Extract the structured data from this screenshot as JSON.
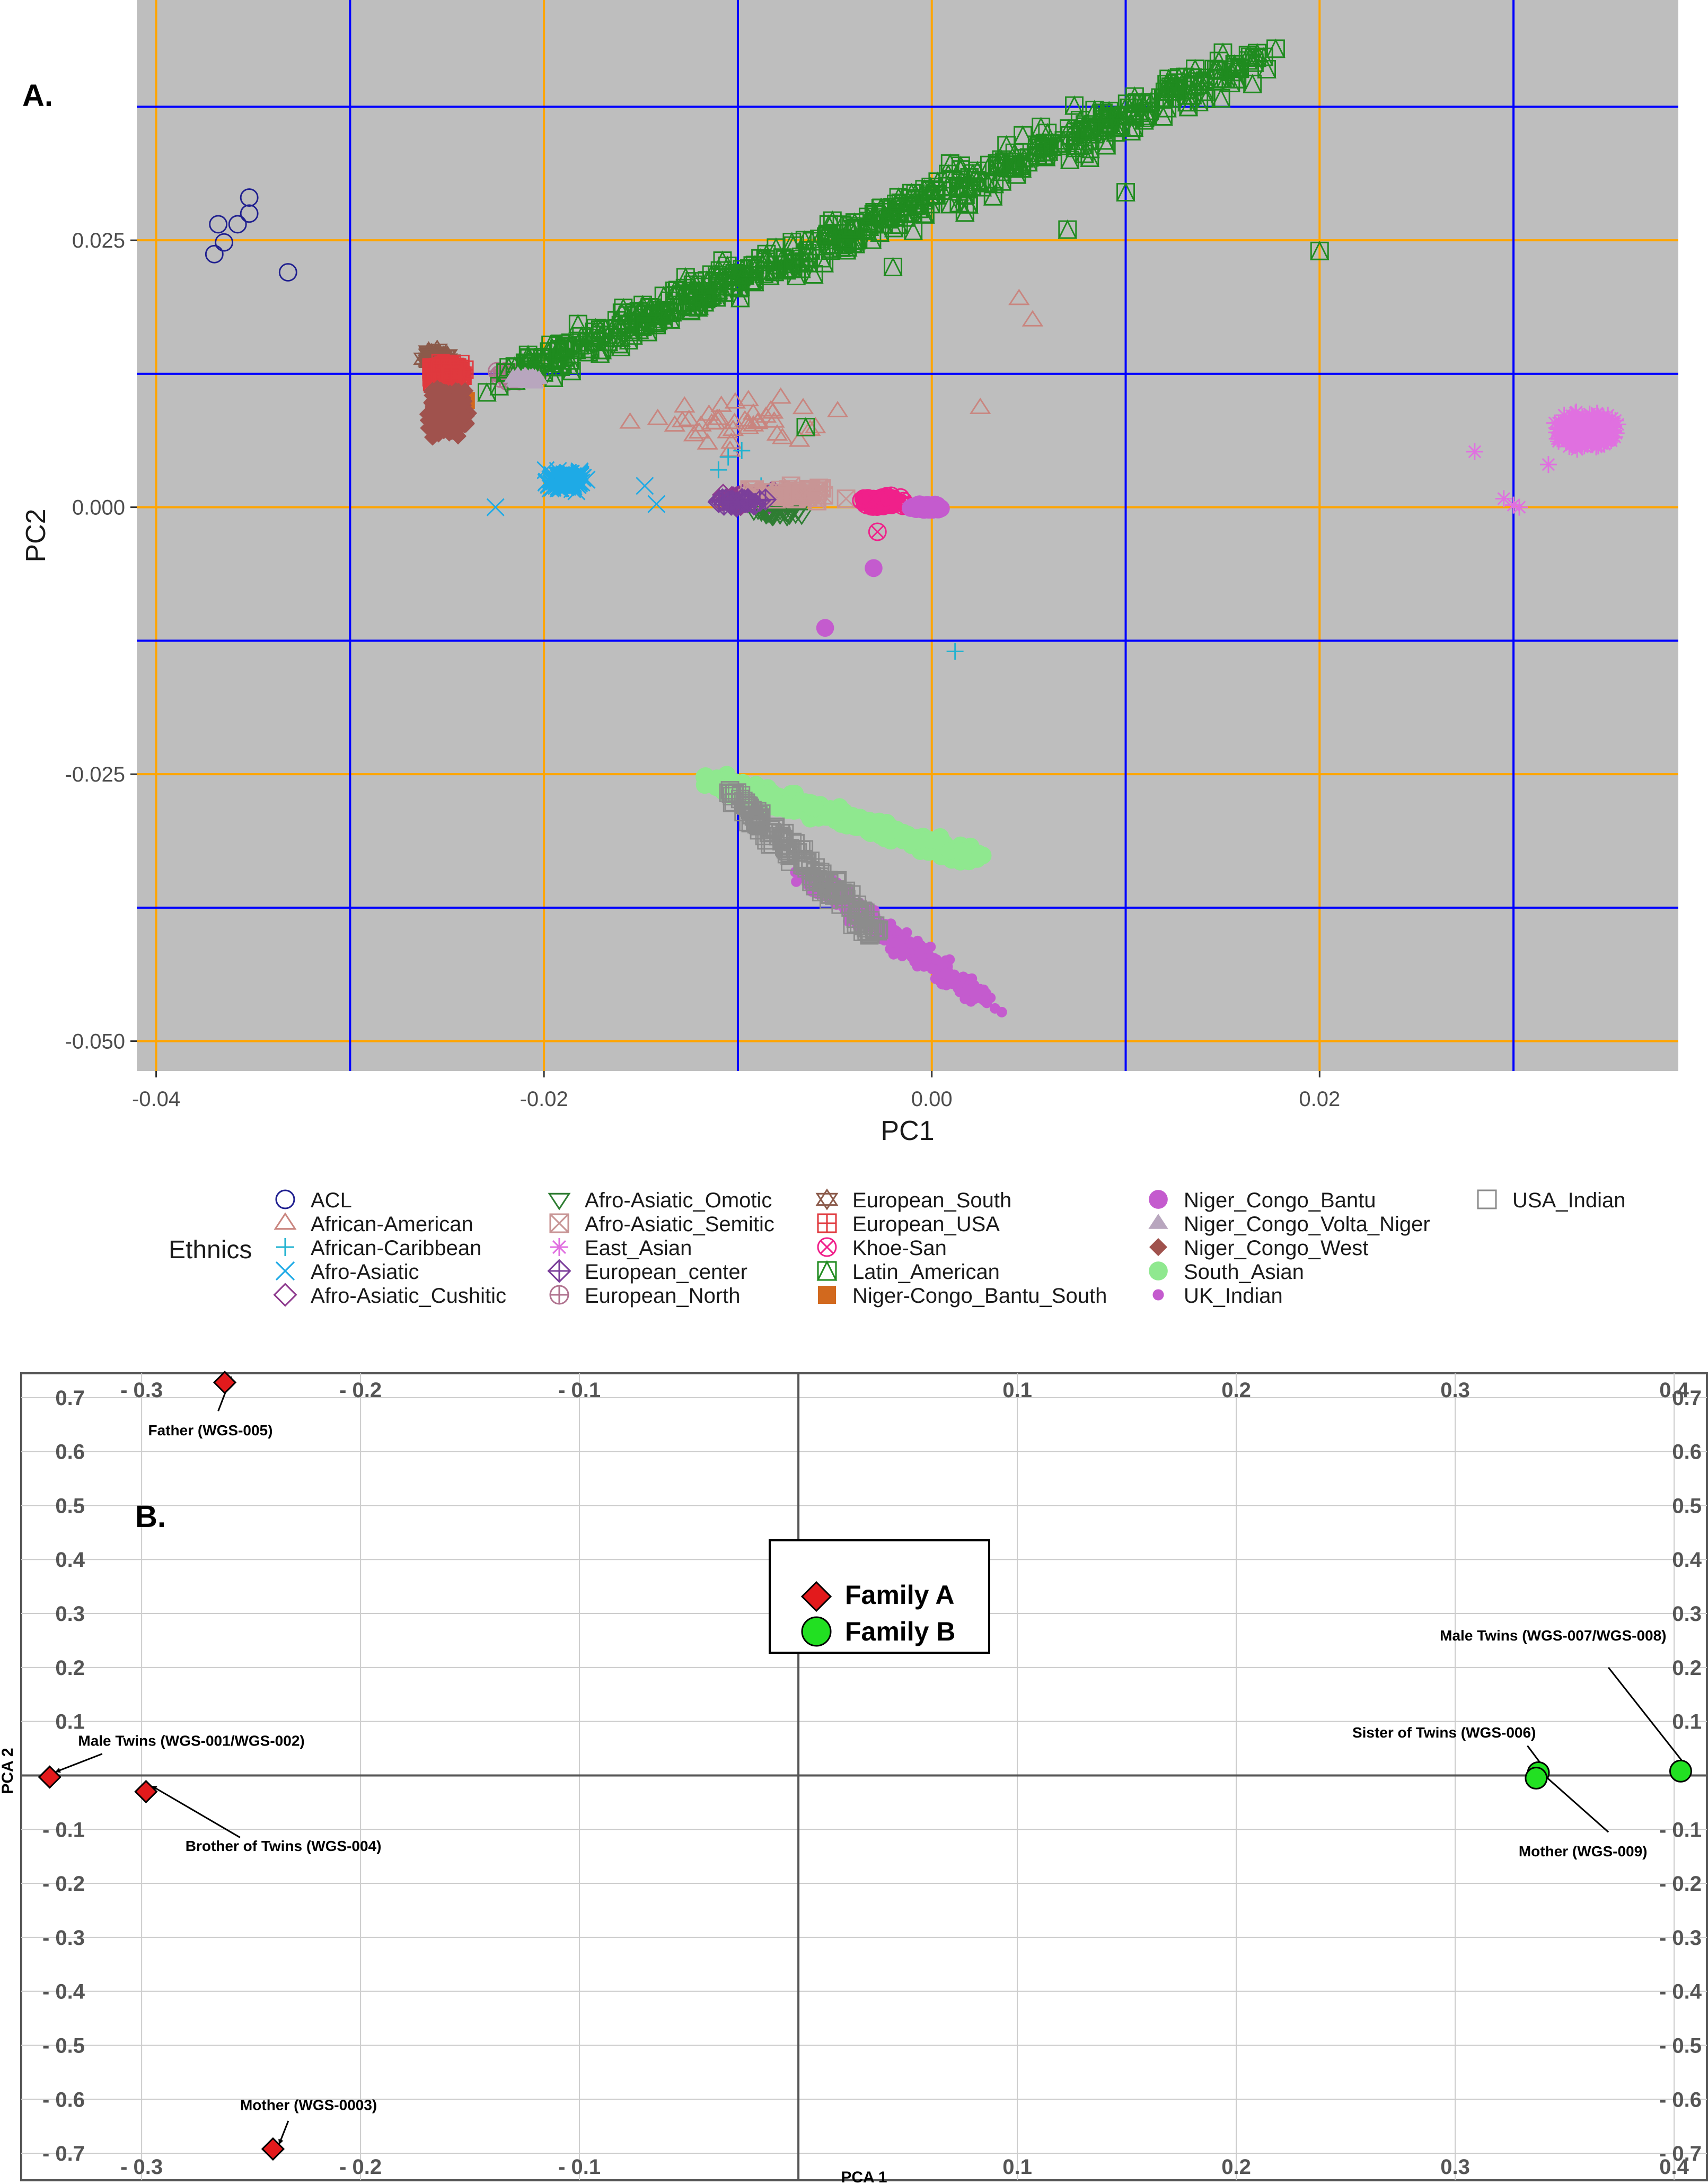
{
  "chart_data": [
    {
      "type": "scatter",
      "panel_label": "A.",
      "xlabel": "PC1",
      "ylabel": "PC2",
      "xlim": [
        -0.041,
        0.0385
      ],
      "ylim": [
        -0.0528,
        0.0475
      ],
      "x_ticks": [
        {
          "value": -0.04,
          "label": "-0.04"
        },
        {
          "value": -0.02,
          "label": "-0.02"
        },
        {
          "value": 0.0,
          "label": "0.00"
        },
        {
          "value": 0.02,
          "label": "0.02"
        }
      ],
      "y_ticks": [
        {
          "value": 0.025,
          "label": "0.025"
        },
        {
          "value": 0.0,
          "label": "0.000"
        },
        {
          "value": -0.025,
          "label": "-0.025"
        },
        {
          "value": -0.05,
          "label": "-0.050"
        }
      ],
      "minor_gridlines_x": [
        -0.03,
        -0.01,
        0.01,
        0.03
      ],
      "minor_gridlines_y": [
        0.0375,
        0.0125,
        -0.0125,
        -0.0375
      ],
      "grid_colors": {
        "major": "#FFA500",
        "minor": "#0000FF",
        "panel": "#BEBEBE"
      },
      "legend_title": "Ethnics",
      "legend_position": "bottom",
      "series": [
        {
          "name": "ACL",
          "color": "#1F1F8F",
          "shape": "circle-open",
          "n": 7,
          "x": [
            -0.037,
            -0.0368,
            -0.0358,
            -0.0352,
            -0.0352,
            -0.0332,
            -0.0365
          ],
          "y": [
            0.0237,
            0.0265,
            0.0265,
            0.0275,
            0.029,
            0.022,
            0.0248
          ]
        },
        {
          "name": "African-American",
          "color": "#C9857F",
          "shape": "triangle-open",
          "n": 40,
          "center": [
            -0.01,
            0.008
          ],
          "spread": [
            0.006,
            0.003
          ],
          "x": [
            0.0045,
            0.0052,
            0.0025,
            -0.012,
            -0.006
          ],
          "y": [
            0.0195,
            0.0175,
            0.0093,
            0.007,
            0.0075
          ]
        },
        {
          "name": "African-Caribbean",
          "color": "#20B2D0",
          "shape": "plus",
          "n": 12,
          "x": [
            -0.0105,
            -0.0098,
            0.0012,
            -0.0088,
            -0.011
          ],
          "y": [
            0.0047,
            0.0053,
            -0.0135,
            0.002,
            0.0035
          ]
        },
        {
          "name": "Afro-Asiatic",
          "color": "#1EAAE6",
          "shape": "cross",
          "n": 160,
          "center": [
            -0.0188,
            0.0025
          ],
          "spread": [
            0.0015,
            0.0012
          ],
          "x": [
            -0.0225,
            -0.0148,
            -0.0142
          ],
          "y": [
            0.0,
            0.002,
            0.0003
          ]
        },
        {
          "name": "Afro-Asiatic_Cushitic",
          "color": "#8E3A8E",
          "shape": "diamond-open",
          "n": 100,
          "center": [
            -0.009,
            0.0008
          ],
          "spread": [
            0.0025,
            0.0008
          ]
        },
        {
          "name": "Afro-Asiatic_Omotic",
          "color": "#2E7D32",
          "shape": "triangle-down-open",
          "n": 30,
          "center": [
            -0.008,
            -0.0005
          ],
          "spread": [
            0.0015,
            0.0006
          ]
        },
        {
          "name": "Afro-Asiatic_Semitic",
          "color": "#C89595",
          "shape": "square-cross",
          "n": 60,
          "center": [
            -0.007,
            0.0012
          ],
          "spread": [
            0.003,
            0.0009
          ]
        },
        {
          "name": "East_Asian",
          "color": "#E070E0",
          "shape": "asterisk",
          "n": 600,
          "center": [
            0.0338,
            0.0072
          ],
          "spread": [
            0.0018,
            0.0018
          ],
          "x": [
            0.028,
            0.03,
            0.0303,
            0.0295,
            0.0318
          ],
          "y": [
            0.0052,
            0.0002,
            0.0,
            0.0008,
            0.004
          ]
        },
        {
          "name": "European_center",
          "color": "#7B3F9A",
          "shape": "diamond-plus",
          "n": 30,
          "center": [
            -0.01,
            0.0005
          ],
          "spread": [
            0.0015,
            0.0005
          ]
        },
        {
          "name": "European_North",
          "color": "#B0738F",
          "shape": "circle-plus",
          "n": 30,
          "center": [
            -0.0215,
            0.0123
          ],
          "spread": [
            0.0015,
            0.0008
          ]
        },
        {
          "name": "European_South",
          "color": "#8B5A4A",
          "shape": "star-open",
          "n": 60,
          "center": [
            -0.0255,
            0.014
          ],
          "spread": [
            0.0008,
            0.0008
          ]
        },
        {
          "name": "European_USA",
          "color": "#E0393E",
          "shape": "square-plus",
          "n": 220,
          "center": [
            -0.025,
            0.0125
          ],
          "spread": [
            0.001,
            0.0012
          ]
        },
        {
          "name": "Khoe-San",
          "color": "#F0208A",
          "shape": "circle-cross",
          "n": 90,
          "center": [
            -0.0025,
            0.0005
          ],
          "spread": [
            0.0015,
            0.0006
          ],
          "x": [
            -0.0028
          ],
          "y": [
            -0.0023
          ]
        },
        {
          "name": "Latin_American",
          "color": "#1F8B1F",
          "shape": "square-triangle",
          "n": 520,
          "path_from": [
            -0.022,
            0.012
          ],
          "path_to": [
            0.017,
            0.042
          ],
          "spread": 0.0025,
          "x": [
            0.02,
            0.01,
            0.007,
            -0.002,
            -0.0065
          ],
          "y": [
            0.024,
            0.0295,
            0.026,
            0.0225,
            0.0075
          ]
        },
        {
          "name": "Niger-Congo_Bantu_South",
          "color": "#D2691E",
          "shape": "square-filled",
          "n": 5,
          "x": [
            -0.0245,
            -0.024,
            -0.0248
          ],
          "y": [
            0.0095,
            0.01,
            0.009
          ]
        },
        {
          "name": "Niger_Congo_Bantu",
          "color": "#C45BCE",
          "shape": "circle-filled",
          "n": 60,
          "center": [
            -0.0002,
            0.0
          ],
          "spread": [
            0.0012,
            0.0004
          ],
          "x": [
            -0.003,
            -0.0055
          ],
          "y": [
            -0.0057,
            -0.0113
          ]
        },
        {
          "name": "Niger_Congo_Volta_Niger",
          "color": "#B8A6BE",
          "shape": "triangle-filled",
          "n": 30,
          "center": [
            -0.021,
            0.012
          ],
          "spread": [
            0.001,
            0.0006
          ]
        },
        {
          "name": "Niger_Congo_West",
          "color": "#A0524D",
          "shape": "diamond-filled",
          "n": 500,
          "center": [
            -0.025,
            0.009
          ],
          "spread": [
            0.0012,
            0.0025
          ]
        },
        {
          "name": "South_Asian",
          "color": "#8FE88F",
          "shape": "circle-filled",
          "n": 300,
          "path_from": [
            -0.0115,
            -0.0255
          ],
          "path_to": [
            0.0025,
            -0.033
          ],
          "spread": 0.0012
        },
        {
          "name": "UK_Indian",
          "color": "#C45BCE",
          "shape": "circle-dot",
          "n": 360,
          "path_from": [
            -0.0065,
            -0.0345
          ],
          "path_to": [
            0.003,
            -0.0465
          ],
          "spread": 0.0012
        },
        {
          "name": "USA_Indian",
          "color": "#8C8C8C",
          "shape": "square-open",
          "n": 170,
          "path_from": [
            -0.0105,
            -0.0265
          ],
          "path_to": [
            -0.0025,
            -0.0405
          ],
          "spread": 0.001
        }
      ]
    },
    {
      "type": "scatter",
      "panel_label": "B.",
      "xlabel": "PCA 1",
      "ylabel": "PCA 2",
      "xlim": [
        -0.355,
        0.415
      ],
      "ylim": [
        -0.75,
        0.745
      ],
      "x_ticks": [
        {
          "value": -0.3,
          "label": "- 0.3"
        },
        {
          "value": -0.2,
          "label": "- 0.2"
        },
        {
          "value": -0.1,
          "label": "- 0.1"
        },
        {
          "value": 0.1,
          "label": "0.1"
        },
        {
          "value": 0.2,
          "label": "0.2"
        },
        {
          "value": 0.3,
          "label": "0.3"
        },
        {
          "value": 0.4,
          "label": "0.4"
        }
      ],
      "y_ticks": [
        {
          "value": 0.7,
          "label": "0.7"
        },
        {
          "value": 0.6,
          "label": "0.6"
        },
        {
          "value": 0.5,
          "label": "0.5"
        },
        {
          "value": 0.4,
          "label": "0.4"
        },
        {
          "value": 0.3,
          "label": "0.3"
        },
        {
          "value": 0.2,
          "label": "0.2"
        },
        {
          "value": 0.1,
          "label": "0.1"
        },
        {
          "value": -0.1,
          "label": "- 0.1"
        },
        {
          "value": -0.2,
          "label": "- 0.2"
        },
        {
          "value": -0.3,
          "label": "- 0.3"
        },
        {
          "value": -0.4,
          "label": "- 0.4"
        },
        {
          "value": -0.5,
          "label": "- 0.5"
        },
        {
          "value": -0.6,
          "label": "- 0.6"
        },
        {
          "value": -0.7,
          "label": "- 0.7"
        }
      ],
      "legend": [
        {
          "name": "Family A",
          "color": "#E31A1C",
          "shape": "diamond"
        },
        {
          "name": "Family B",
          "color": "#22E022",
          "shape": "circle"
        }
      ],
      "points": [
        {
          "label": "Father (WGS-005)",
          "family": "Family A",
          "x": -0.262,
          "y": 0.728
        },
        {
          "label": "Male Twins (WGS-001/WGS-002)",
          "family": "Family A",
          "x": -0.342,
          "y": -0.003
        },
        {
          "label": "Brother of Twins (WGS-004)",
          "family": "Family A",
          "x": -0.298,
          "y": -0.03
        },
        {
          "label": "Mother (WGS-0003)",
          "family": "Family A",
          "x": -0.24,
          "y": -0.692
        },
        {
          "label": "Sister of Twins (WGS-006)",
          "family": "Family B",
          "x": 0.338,
          "y": 0.005
        },
        {
          "label": "Mother (WGS-009)",
          "family": "Family B",
          "x": 0.337,
          "y": -0.005
        },
        {
          "label": "Male Twins (WGS-007/WGS-008)",
          "family": "Family B",
          "x": 0.403,
          "y": 0.008
        }
      ]
    }
  ]
}
